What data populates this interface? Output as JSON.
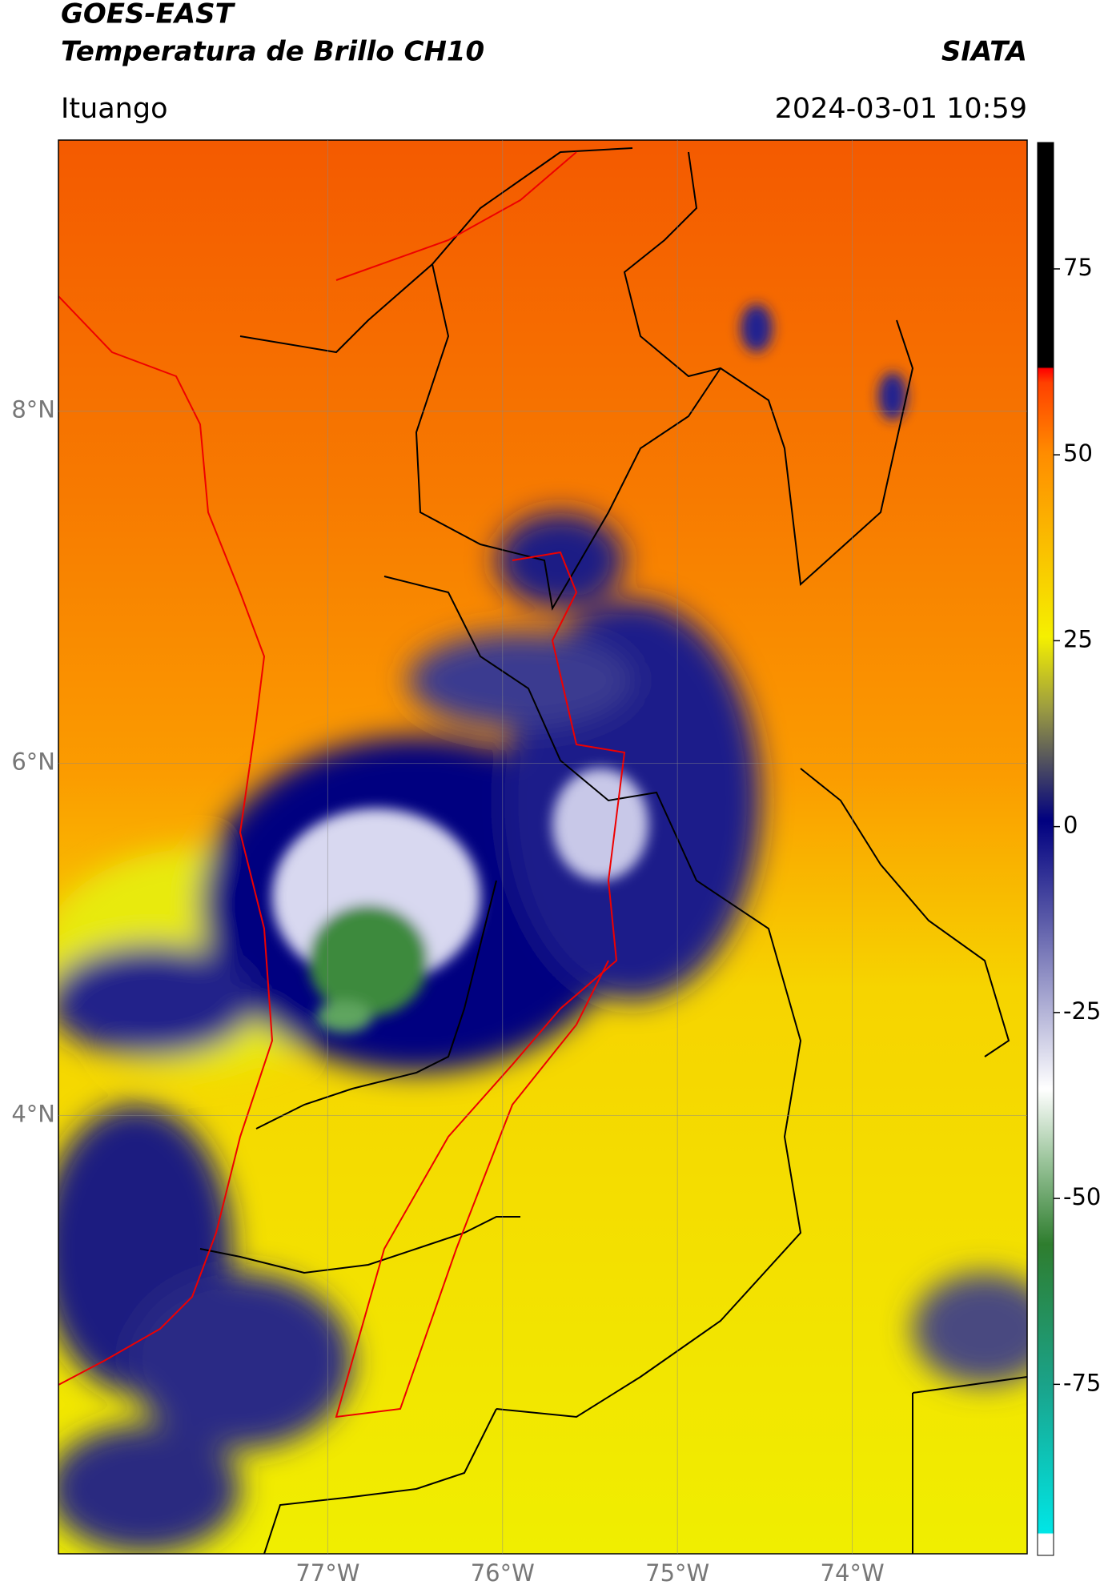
{
  "header": {
    "title": "GOES-EAST",
    "subtitle": "Temperatura de Brillo CH10",
    "brand": "SIATA",
    "location": "Ituango",
    "datetime": "2024-03-01 10:59"
  },
  "map": {
    "xlim": [
      -78.54,
      -73.0
    ],
    "ylim": [
      1.51,
      9.54
    ],
    "xticks": [
      {
        "value": -77,
        "label": "77°W"
      },
      {
        "value": -76,
        "label": "76°W"
      },
      {
        "value": -75,
        "label": "75°W"
      },
      {
        "value": -74,
        "label": "74°W"
      }
    ],
    "yticks": [
      {
        "value": 8,
        "label": "8°N"
      },
      {
        "value": 6,
        "label": "6°N"
      },
      {
        "value": 4,
        "label": "4°N"
      }
    ]
  },
  "colorbar": {
    "lim": [
      -98,
      92
    ],
    "ticks": [
      75,
      50,
      25,
      0,
      -25,
      -50,
      -75
    ]
  }
}
